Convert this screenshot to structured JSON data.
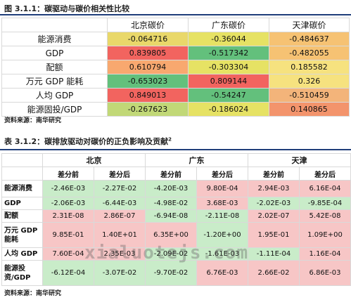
{
  "table1": {
    "caption": "图 3.1.1：碳驱动与碳价相关性比较",
    "headers": [
      "",
      "北京碳价",
      "广东碳价",
      "天津碳价"
    ],
    "rows": [
      {
        "label": "能源消费",
        "cells": [
          {
            "v": "-0.064716",
            "c": "#e9d86a"
          },
          {
            "v": "-0.36044",
            "c": "#e6e264"
          },
          {
            "v": "-0.484637",
            "c": "#f6c273"
          }
        ]
      },
      {
        "label": "GDP",
        "cells": [
          {
            "v": "0.839805",
            "c": "#f2645f"
          },
          {
            "v": "-0.517342",
            "c": "#63c07c"
          },
          {
            "v": "-0.482055",
            "c": "#f6c273"
          }
        ]
      },
      {
        "label": "配额",
        "cells": [
          {
            "v": "0.610794",
            "c": "#f8a86f"
          },
          {
            "v": "-0.303304",
            "c": "#e6e264"
          },
          {
            "v": "0.185582",
            "c": "#f6e27f"
          }
        ]
      },
      {
        "label": "万元 GDP 能耗",
        "cells": [
          {
            "v": "-0.653023",
            "c": "#63c07c"
          },
          {
            "v": "0.809144",
            "c": "#f2645f"
          },
          {
            "v": "0.326",
            "c": "#f6e27f"
          }
        ]
      },
      {
        "label": "人均 GDP",
        "cells": [
          {
            "v": "0.849013",
            "c": "#f2645f"
          },
          {
            "v": "-0.54247",
            "c": "#63c07c"
          },
          {
            "v": "-0.510459",
            "c": "#f3b47a"
          }
        ]
      },
      {
        "label": "能源固投/GDP",
        "cells": [
          {
            "v": "-0.267623",
            "c": "#c1d877"
          },
          {
            "v": "-0.186024",
            "c": "#e6e264"
          },
          {
            "v": "0.140865",
            "c": "#f3946c"
          }
        ]
      }
    ],
    "source": "资料来源：南华研究"
  },
  "table2": {
    "caption": "表 3.1.2：碳排放驱动对碳价的正负影响及贡献",
    "caption_sup": "2",
    "regions": [
      "北京",
      "广东",
      "天津"
    ],
    "subheaders": [
      "差分前",
      "差分后",
      "差分前",
      "差分后",
      "差分前",
      "差分后"
    ],
    "rows": [
      {
        "label": "能源消费",
        "cells": [
          {
            "v": "-2.46E-03",
            "c": "#c9ecc9"
          },
          {
            "v": "-2.27E-02",
            "c": "#c9ecc9"
          },
          {
            "v": "-4.20E-03",
            "c": "#c9ecc9"
          },
          {
            "v": "9.80E-04",
            "c": "#f7c6c6"
          },
          {
            "v": "2.94E-03",
            "c": "#f7c6c6"
          },
          {
            "v": "6.16E-04",
            "c": "#f7c6c6"
          }
        ]
      },
      {
        "label": "GDP",
        "cells": [
          {
            "v": "-2.06E-03",
            "c": "#c9ecc9"
          },
          {
            "v": "-6.44E-03",
            "c": "#c9ecc9"
          },
          {
            "v": "-4.98E-02",
            "c": "#c9ecc9"
          },
          {
            "v": "3.68E-03",
            "c": "#f7c6c6"
          },
          {
            "v": "-2.02E-03",
            "c": "#c9ecc9"
          },
          {
            "v": "-9.85E-04",
            "c": "#c9ecc9"
          }
        ]
      },
      {
        "label": "配额",
        "cells": [
          {
            "v": "2.31E-08",
            "c": "#f7c6c6"
          },
          {
            "v": "2.86E-07",
            "c": "#f7c6c6"
          },
          {
            "v": "-6.94E-08",
            "c": "#c9ecc9"
          },
          {
            "v": "-2.11E-08",
            "c": "#c9ecc9"
          },
          {
            "v": "2.02E-07",
            "c": "#f7c6c6"
          },
          {
            "v": "5.42E-08",
            "c": "#f7c6c6"
          }
        ]
      },
      {
        "label": "万元 GDP 能耗",
        "cells": [
          {
            "v": "9.85E-01",
            "c": "#f7c6c6"
          },
          {
            "v": "1.40E+01",
            "c": "#f7c6c6"
          },
          {
            "v": "6.35E+00",
            "c": "#f7c6c6"
          },
          {
            "v": "-1.20E+00",
            "c": "#c9ecc9"
          },
          {
            "v": "1.95E-01",
            "c": "#f7c6c6"
          },
          {
            "v": "1.09E+00",
            "c": "#f7c6c6"
          }
        ]
      },
      {
        "label": "人均 GDP",
        "cells": [
          {
            "v": "7.60E-04",
            "c": "#f7c6c6"
          },
          {
            "v": "2.35E-03",
            "c": "#f7c6c6"
          },
          {
            "v": "-2.09E-02",
            "c": "#c9ecc9"
          },
          {
            "v": "-1.61E-03",
            "c": "#c9ecc9"
          },
          {
            "v": "-1.11E-04",
            "c": "#c9ecc9"
          },
          {
            "v": "1.16E-04",
            "c": "#f7c6c6"
          }
        ]
      },
      {
        "label": "能源投资/GDP",
        "cells": [
          {
            "v": "-6.12E-04",
            "c": "#c9ecc9"
          },
          {
            "v": "-3.07E-02",
            "c": "#c9ecc9"
          },
          {
            "v": "-9.70E-02",
            "c": "#c9ecc9"
          },
          {
            "v": "6.76E-03",
            "c": "#f7c6c6"
          },
          {
            "v": "2.66E-02",
            "c": "#f7c6c6"
          },
          {
            "v": "6.86E-03",
            "c": "#f7c6c6"
          }
        ]
      }
    ],
    "source": "资料来源：南华研究"
  },
  "watermark": "xialuotejs.com"
}
